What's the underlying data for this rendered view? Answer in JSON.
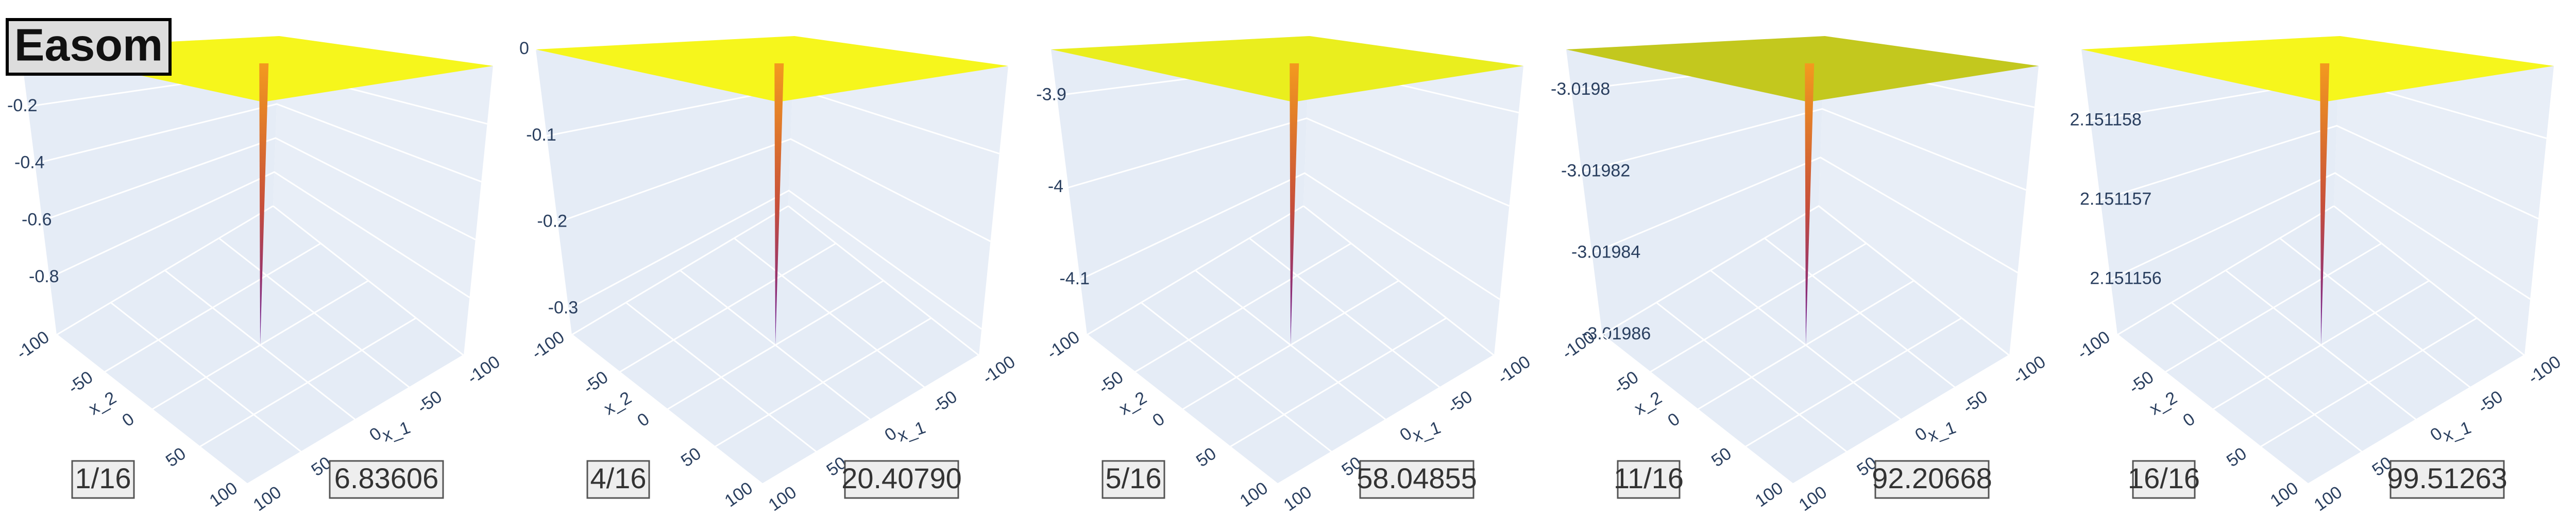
{
  "title": "Easom",
  "chart_data": [
    {
      "type": "surface3d",
      "frame": "1/16",
      "score": "6.83606",
      "surface_color": "#f6f61c",
      "surface_level": 0,
      "spike_min": -1,
      "zlim": [
        -1,
        0
      ],
      "zticks": [
        -0.2,
        -0.4,
        -0.6,
        -0.8
      ],
      "xlabel": "x_1",
      "ylabel": "x_2",
      "xlim": [
        -100,
        100
      ],
      "ylim": [
        -100,
        100
      ],
      "xticks": [
        -100,
        -50,
        0,
        50,
        100
      ],
      "yticks": [
        -100,
        -50,
        0,
        50,
        100
      ]
    },
    {
      "type": "surface3d",
      "frame": "4/16",
      "score": "20.40790",
      "surface_color": "#f6f61c",
      "surface_level": 0,
      "spike_min": -0.33,
      "zlim": [
        -0.33,
        0
      ],
      "zticks": [
        0,
        -0.1,
        -0.2,
        -0.3
      ],
      "xlabel": "x_1",
      "ylabel": "x_2",
      "xlim": [
        -100,
        100
      ],
      "ylim": [
        -100,
        100
      ],
      "xticks": [
        -100,
        -50,
        0,
        50,
        100
      ],
      "yticks": [
        -100,
        -50,
        0,
        50,
        100
      ]
    },
    {
      "type": "surface3d",
      "frame": "5/16",
      "score": "58.04855",
      "surface_color": "#eaee1e",
      "surface_level": -3.85,
      "spike_min": -4.16,
      "zlim": [
        -4.16,
        -3.85
      ],
      "zticks": [
        -3.9,
        -4,
        -4.1
      ],
      "xlabel": "x_1",
      "ylabel": "x_2",
      "xlim": [
        -100,
        100
      ],
      "ylim": [
        -100,
        100
      ],
      "xticks": [
        -100,
        -50,
        0,
        50,
        100
      ],
      "yticks": [
        -100,
        -50,
        0,
        50,
        100
      ]
    },
    {
      "type": "surface3d",
      "frame": "11/16",
      "score": "92.20668",
      "surface_color": "#c3c81e",
      "surface_level": -3.01979,
      "spike_min": -3.01986,
      "zlim": [
        -3.01986,
        -3.01979
      ],
      "zticks": [
        -3.0198,
        -3.01982,
        -3.01984,
        -3.01986
      ],
      "xlabel": "x_1",
      "ylabel": "x_2",
      "xlim": [
        -100,
        100
      ],
      "ylim": [
        -100,
        100
      ],
      "xticks": [
        -100,
        -50,
        0,
        50,
        100
      ],
      "yticks": [
        -100,
        -50,
        0,
        50,
        100
      ]
    },
    {
      "type": "surface3d",
      "frame": "16/16",
      "score": "99.51263",
      "surface_color": "#f6f61c",
      "surface_level": 2.1511589,
      "spike_min": 2.1511553,
      "zlim": [
        2.1511553,
        2.1511589
      ],
      "zticks": [
        2.151158,
        2.151157,
        2.151156
      ],
      "xlabel": "x_1",
      "ylabel": "x_2",
      "xlim": [
        -100,
        100
      ],
      "ylim": [
        -100,
        100
      ],
      "xticks": [
        -100,
        -50,
        0,
        50,
        100
      ],
      "yticks": [
        -100,
        -50,
        0,
        50,
        100
      ]
    }
  ]
}
